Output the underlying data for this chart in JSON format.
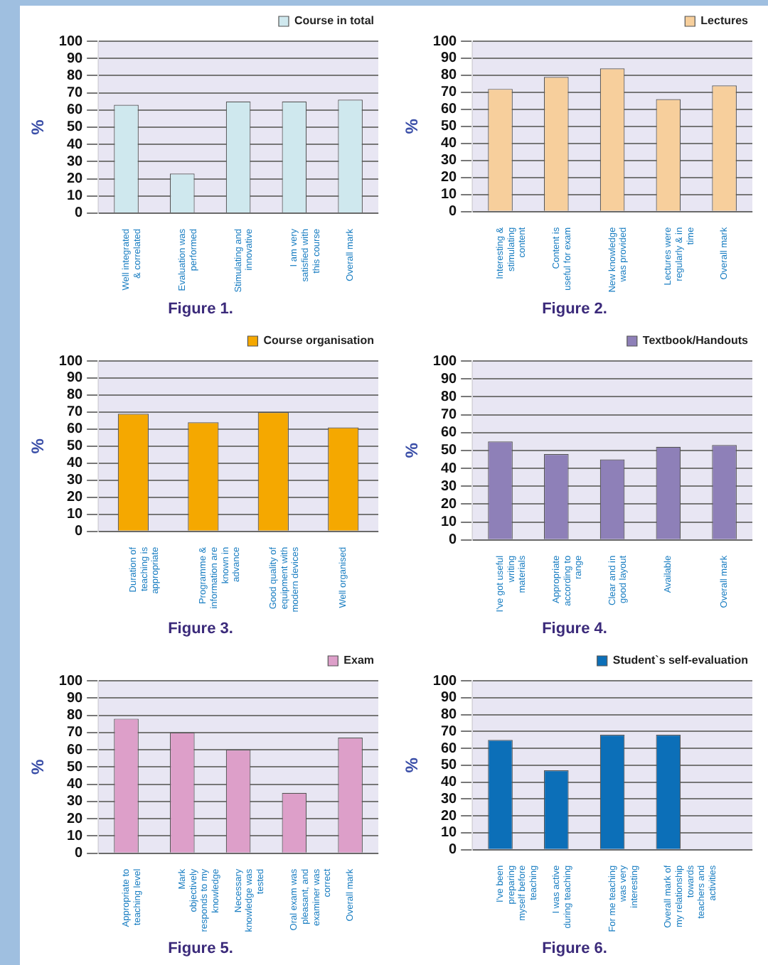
{
  "chart_data": [
    {
      "type": "bar",
      "title": "Figure 1.",
      "ylabel": "%",
      "categories": [
        "Well integrated & correlated",
        "Evaluation was performed",
        "Stimulating and innovative",
        "I am very satisfied with this course",
        "Overall mark"
      ],
      "series": [
        {
          "name": "Course in total",
          "color": "#cfe8ee",
          "values": [
            63,
            23,
            65,
            65,
            66
          ]
        }
      ],
      "ylim": [
        0,
        100
      ],
      "yticks": [
        0,
        10,
        20,
        30,
        40,
        50,
        60,
        70,
        80,
        90,
        100
      ],
      "grid": "y",
      "legend": "top right"
    },
    {
      "type": "bar",
      "title": "Figure 2.",
      "ylabel": "%",
      "categories": [
        "Interesting & stimulating content",
        "Content is useful for exam",
        "New knowledge was provided",
        "Lectures were regularly & in time",
        "Overall mark"
      ],
      "series": [
        {
          "name": "Lectures",
          "color": "#f7cf9c",
          "values": [
            72,
            79,
            84,
            66,
            74
          ]
        }
      ],
      "ylim": [
        0,
        100
      ],
      "yticks": [
        0,
        10,
        20,
        30,
        40,
        50,
        60,
        70,
        80,
        90,
        100
      ],
      "grid": "y",
      "legend": "top right"
    },
    {
      "type": "bar",
      "title": "Figure 3.",
      "ylabel": "%",
      "categories": [
        "Duration of teaching is appropriate",
        "Programme & information are known in advance",
        "Good quality of equipment with modern devices",
        "Well organised"
      ],
      "series": [
        {
          "name": "Course organisation",
          "color": "#f5a800",
          "values": [
            69,
            64,
            70,
            61
          ]
        }
      ],
      "ylim": [
        0,
        100
      ],
      "yticks": [
        0,
        10,
        20,
        30,
        40,
        50,
        60,
        70,
        80,
        90,
        100
      ],
      "grid": "y",
      "legend": "top right"
    },
    {
      "type": "bar",
      "title": "Figure 4.",
      "ylabel": "%",
      "categories": [
        "I've got useful writing materials",
        "Appropriate according to range",
        "Clear and in good layout",
        "Available",
        "Overall mark"
      ],
      "series": [
        {
          "name": "Textbook/Handouts",
          "color": "#8e80b8",
          "values": [
            55,
            48,
            45,
            52,
            53
          ]
        }
      ],
      "ylim": [
        0,
        100
      ],
      "yticks": [
        0,
        10,
        20,
        30,
        40,
        50,
        60,
        70,
        80,
        90,
        100
      ],
      "grid": "y",
      "legend": "top right"
    },
    {
      "type": "bar",
      "title": "Figure 5.",
      "ylabel": "%",
      "categories": [
        "Appropriate to teaching level",
        "Mark objectively responds to my knowledge",
        "Necessary knowledge was tested",
        "Oral exam was pleasant, and examiner was correct",
        "Overall mark"
      ],
      "series": [
        {
          "name": "Exam",
          "color": "#dd9fc9",
          "values": [
            78,
            70,
            60,
            35,
            67
          ]
        }
      ],
      "ylim": [
        0,
        100
      ],
      "yticks": [
        0,
        10,
        20,
        30,
        40,
        50,
        60,
        70,
        80,
        90,
        100
      ],
      "grid": "y",
      "legend": "top right"
    },
    {
      "type": "bar",
      "title": "Figure 6.",
      "ylabel": "%",
      "categories": [
        "I've been preparing myself before teaching",
        "I was active during teaching",
        "For me teaching was very interesting",
        "Overall mark of my relationship towards teachers and activities",
        null
      ],
      "series": [
        {
          "name": "Student`s self-evaluation",
          "color": "#0c6fb8",
          "values": [
            65,
            47,
            68,
            68,
            null
          ]
        }
      ],
      "ylim": [
        0,
        100
      ],
      "yticks": [
        0,
        10,
        20,
        30,
        40,
        50,
        60,
        70,
        80,
        90,
        100
      ],
      "grid": "y",
      "legend": "top right"
    }
  ]
}
